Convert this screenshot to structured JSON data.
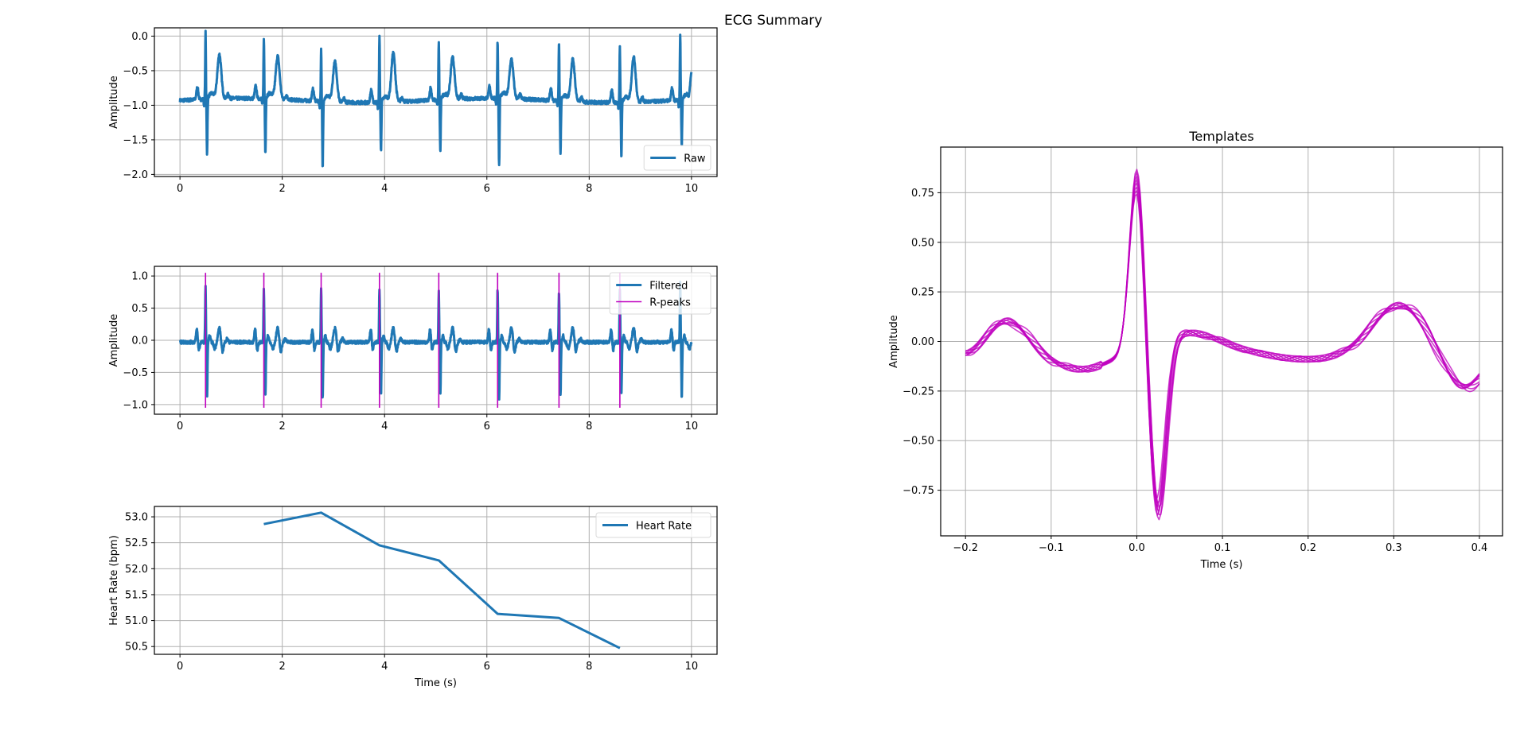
{
  "figure": {
    "suptitle": "ECG Summary"
  },
  "colors": {
    "blue": "#1f77b4",
    "magenta": "#bf00bf",
    "grid": "#b0b0b0",
    "axes": "#000000"
  },
  "chart_data": [
    {
      "id": "raw",
      "type": "line",
      "title": "",
      "xlabel": "",
      "ylabel": "Amplitude",
      "xlim": [
        -0.5,
        10.5
      ],
      "ylim": [
        -2.03,
        0.12
      ],
      "xticks": [
        0,
        2,
        4,
        6,
        8,
        10
      ],
      "xtick_labels": [
        "0",
        "2",
        "4",
        "6",
        "8",
        "10"
      ],
      "yticks": [
        0.0,
        -0.5,
        -1.0,
        -1.5,
        -2.0
      ],
      "ytick_labels": [
        "0.0",
        "−0.5",
        "−1.0",
        "−1.5",
        "−2.0"
      ],
      "grid": true,
      "legend_position": "lower right",
      "series": [
        {
          "name": "Raw",
          "color": "#1f77b4",
          "baseline": -0.93,
          "r_peak_times": [
            0.5,
            1.64,
            2.76,
            3.9,
            5.06,
            6.21,
            7.41,
            8.6,
            9.78
          ],
          "r_peak_amplitudes": [
            0.03,
            -0.05,
            -0.17,
            0.01,
            -0.09,
            -0.12,
            -0.09,
            -0.13,
            0.02
          ],
          "s_wave_minima": [
            -1.75,
            -1.72,
            -1.92,
            -1.65,
            -1.7,
            -1.91,
            -1.7,
            -1.75,
            -1.6
          ],
          "t_wave_peaks": [
            -0.21,
            -0.23,
            -0.27,
            -0.14,
            -0.24,
            -0.28,
            -0.24,
            -0.2
          ],
          "end_value": -0.52
        }
      ]
    },
    {
      "id": "filtered",
      "type": "line",
      "title": "",
      "xlabel": "",
      "ylabel": "Amplitude",
      "xlim": [
        -0.5,
        10.5
      ],
      "ylim": [
        -1.15,
        1.15
      ],
      "xticks": [
        0,
        2,
        4,
        6,
        8,
        10
      ],
      "xtick_labels": [
        "0",
        "2",
        "4",
        "6",
        "8",
        "10"
      ],
      "yticks": [
        1.0,
        0.5,
        0.0,
        -0.5,
        -1.0
      ],
      "ytick_labels": [
        "1.0",
        "0.5",
        "0.0",
        "−0.5",
        "−1.0"
      ],
      "grid": true,
      "legend_position": "upper right",
      "series": [
        {
          "name": "Filtered",
          "color": "#1f77b4",
          "r_peak_times": [
            0.5,
            1.64,
            2.76,
            3.9,
            5.06,
            6.21,
            7.41,
            8.6,
            9.78
          ],
          "r_peak_amplitudes": [
            0.88,
            0.82,
            0.85,
            0.82,
            0.78,
            0.82,
            0.8,
            0.82,
            0.92
          ],
          "s_wave_minima": [
            -0.86,
            -0.83,
            -0.87,
            -0.8,
            -0.82,
            -0.87,
            -0.82,
            -0.83,
            -0.85
          ]
        },
        {
          "name": "R-peaks",
          "color": "#bf00bf",
          "type": "vlines",
          "x": [
            0.5,
            1.64,
            2.76,
            3.9,
            5.06,
            6.21,
            7.41,
            8.6
          ],
          "ymin": -1.05,
          "ymax": 1.05
        }
      ]
    },
    {
      "id": "heart_rate",
      "type": "line",
      "title": "",
      "xlabel": "Time (s)",
      "ylabel": "Heart Rate (bpm)",
      "xlim": [
        -0.5,
        10.5
      ],
      "ylim": [
        50.35,
        53.2
      ],
      "xticks": [
        0,
        2,
        4,
        6,
        8,
        10
      ],
      "xtick_labels": [
        "0",
        "2",
        "4",
        "6",
        "8",
        "10"
      ],
      "yticks": [
        53.0,
        52.5,
        52.0,
        51.5,
        51.0,
        50.5
      ],
      "ytick_labels": [
        "53.0",
        "52.5",
        "52.0",
        "51.5",
        "51.0",
        "50.5"
      ],
      "grid": true,
      "legend_position": "upper right",
      "series": [
        {
          "name": "Heart Rate",
          "color": "#1f77b4",
          "x": [
            1.64,
            2.76,
            3.9,
            5.06,
            6.21,
            7.41,
            8.6
          ],
          "y": [
            52.86,
            53.08,
            52.45,
            52.16,
            51.13,
            51.05,
            50.47
          ]
        }
      ]
    },
    {
      "id": "templates",
      "type": "line",
      "title": "Templates",
      "xlabel": "Time (s)",
      "ylabel": "Amplitude",
      "xlim": [
        -0.229,
        0.427
      ],
      "ylim": [
        -0.98,
        0.98
      ],
      "xticks": [
        -0.2,
        -0.1,
        0.0,
        0.1,
        0.2,
        0.3,
        0.4
      ],
      "xtick_labels": [
        "−0.2",
        "−0.1",
        "0.0",
        "0.1",
        "0.2",
        "0.3",
        "0.4"
      ],
      "yticks": [
        0.75,
        0.5,
        0.25,
        0.0,
        -0.25,
        -0.5,
        -0.75
      ],
      "ytick_labels": [
        "0.75",
        "0.50",
        "0.25",
        "0.00",
        "−0.25",
        "−0.50",
        "−0.75"
      ],
      "grid": true,
      "series": [
        {
          "name": "Templates",
          "color": "#bf00bf",
          "count": 8,
          "x_range": [
            -0.2,
            0.4
          ],
          "q_point": [
            -0.2,
            -0.07
          ],
          "p_wave_peak": [
            -0.15,
            0.08
          ],
          "pr_segment_min": [
            -0.065,
            -0.13
          ],
          "r_peak": [
            0.0,
            0.82
          ],
          "r_peak_range": [
            0.76,
            0.87
          ],
          "s_wave_min": [
            0.025,
            -0.84
          ],
          "s_wave_range": [
            -0.8,
            -0.89
          ],
          "st_level": [
            0.06,
            0.02
          ],
          "t_wave_peak": [
            0.3,
            0.15
          ],
          "end_value": [
            0.4,
            -0.13
          ]
        }
      ]
    }
  ]
}
